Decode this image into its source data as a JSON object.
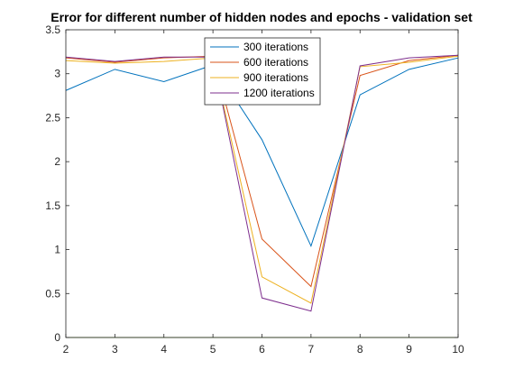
{
  "chart_data": {
    "type": "line",
    "title": "Error for different number of hidden nodes and epochs - validation set",
    "xlabel": "",
    "ylabel": "",
    "xlim": [
      2,
      10
    ],
    "ylim": [
      0,
      3.5
    ],
    "xticks": [
      "2",
      "3",
      "4",
      "5",
      "6",
      "7",
      "8",
      "9",
      "10"
    ],
    "yticks": [
      "0",
      "0.5",
      "1",
      "1.5",
      "2",
      "2.5",
      "3",
      "3.5"
    ],
    "grid": false,
    "legend_position": "top-center",
    "x": [
      2,
      3,
      4,
      5,
      6,
      7,
      8,
      9,
      10
    ],
    "series": [
      {
        "name": "300 iterations",
        "color": "#0072BD",
        "values": [
          2.81,
          3.05,
          2.91,
          3.1,
          2.25,
          1.04,
          2.76,
          3.05,
          3.18
        ]
      },
      {
        "name": "600 iterations",
        "color": "#D95319",
        "values": [
          3.18,
          3.13,
          3.18,
          3.2,
          1.12,
          0.58,
          2.98,
          3.15,
          3.21
        ]
      },
      {
        "name": "900 iterations",
        "color": "#EDB120",
        "values": [
          3.15,
          3.12,
          3.14,
          3.18,
          0.69,
          0.39,
          3.08,
          3.13,
          3.2
        ]
      },
      {
        "name": "1200 iterations",
        "color": "#7E2F8E",
        "values": [
          3.19,
          3.14,
          3.19,
          3.19,
          0.45,
          0.3,
          3.09,
          3.18,
          3.21
        ]
      }
    ],
    "baseline": {
      "color": "#77AC30",
      "value": 0
    }
  }
}
